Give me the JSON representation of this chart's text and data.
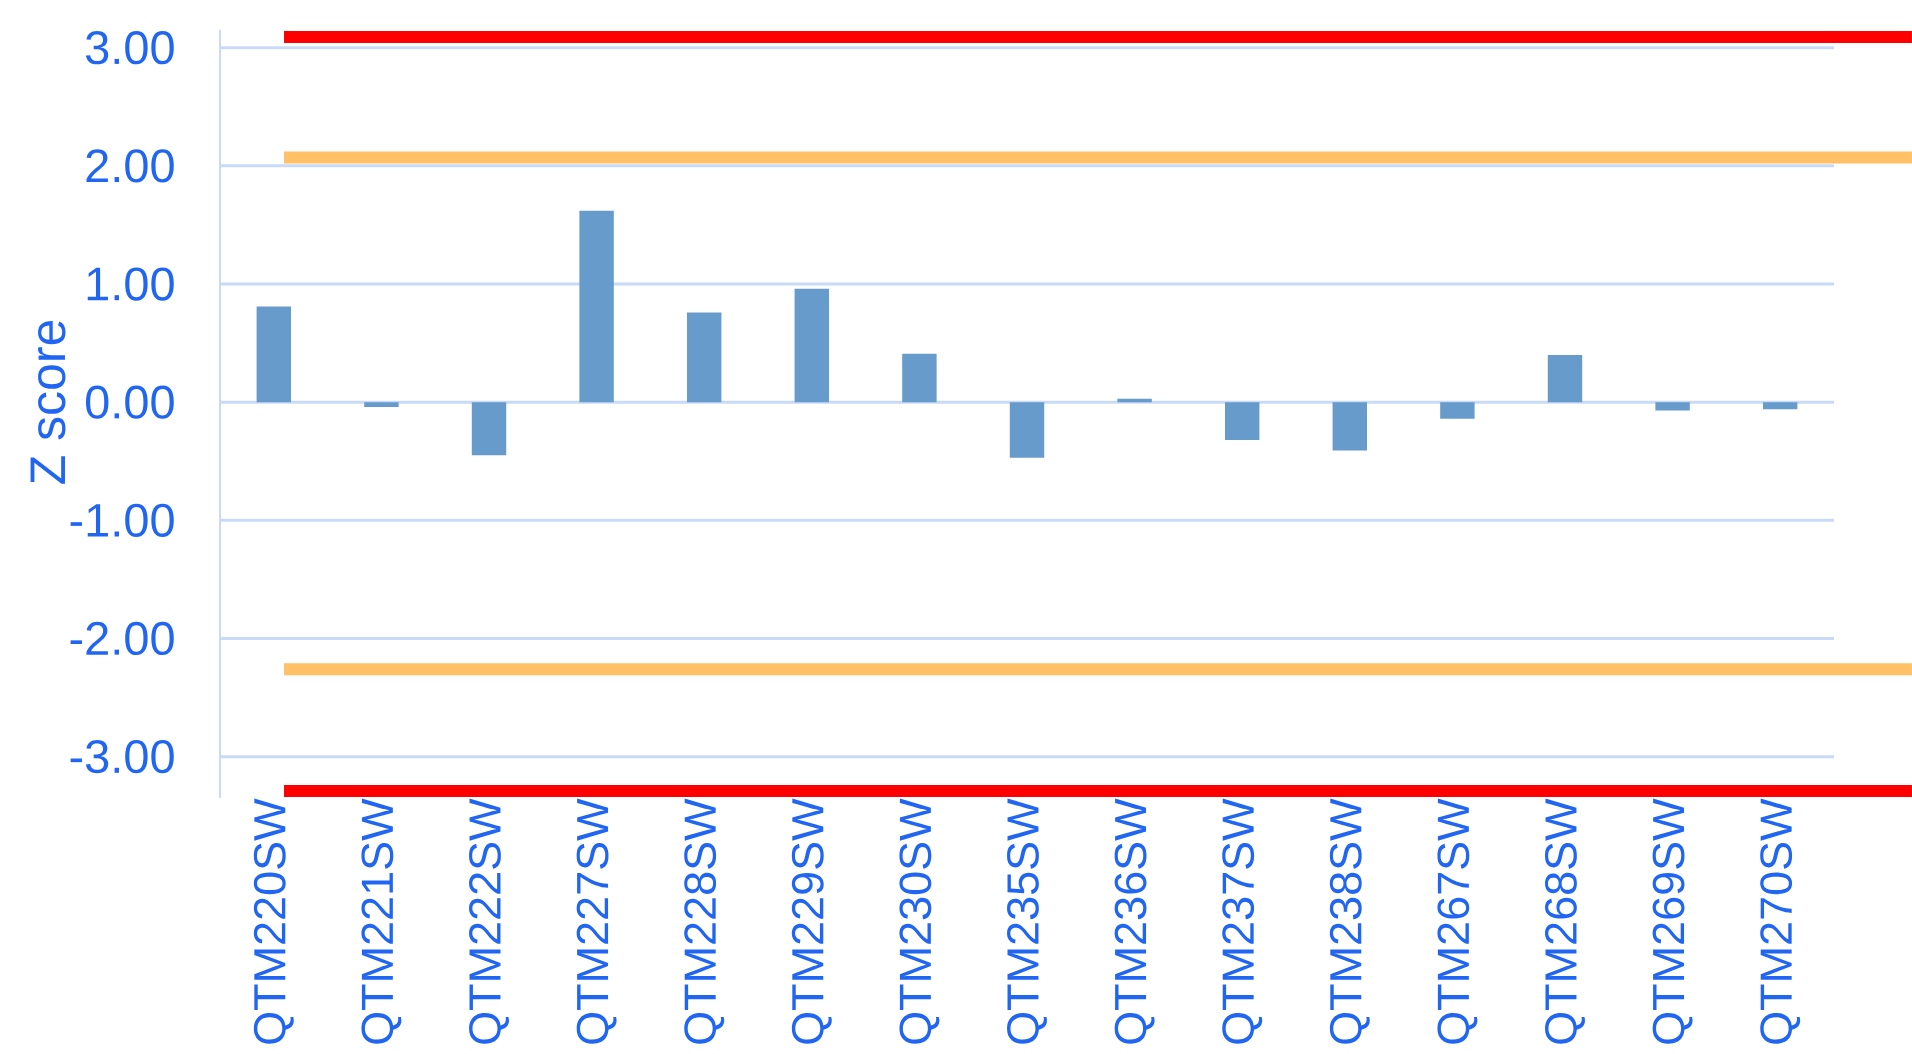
{
  "chart_data": {
    "type": "bar",
    "ylabel": "Z score",
    "categories": [
      "QTM220SW",
      "QTM221SW",
      "QTM222SW",
      "QTM227SW",
      "QTM228SW",
      "QTM229SW",
      "QTM230SW",
      "QTM235SW",
      "QTM236SW",
      "QTM237SW",
      "QTM238SW",
      "QTM267SW",
      "QTM268SW",
      "QTM269SW",
      "QTM270SW"
    ],
    "values": [
      0.81,
      -0.04,
      -0.45,
      1.62,
      0.76,
      0.96,
      0.41,
      -0.47,
      0.03,
      -0.32,
      -0.41,
      -0.14,
      0.4,
      -0.07,
      -0.06
    ],
    "color": "#679bcb",
    "ylim": [
      -3.35,
      3.15
    ],
    "yticks": [
      {
        "value": -3,
        "label": "-3.00"
      },
      {
        "value": -2,
        "label": "-2.00"
      },
      {
        "value": -1,
        "label": "-1.00"
      },
      {
        "value": 0,
        "label": "0.00"
      },
      {
        "value": 1,
        "label": "1.00"
      },
      {
        "value": 2,
        "label": "2.00"
      },
      {
        "value": 3,
        "label": "3.00"
      }
    ],
    "grid": "y",
    "ref_lines": [
      {
        "axis": "y",
        "value": 3.09,
        "color": "#ff0000"
      },
      {
        "axis": "y",
        "value": 2.07,
        "color": "#ffc066"
      },
      {
        "axis": "y",
        "value": -2.26,
        "color": "#ffc066"
      },
      {
        "axis": "y",
        "value": -3.29,
        "color": "#ff0000"
      }
    ]
  }
}
